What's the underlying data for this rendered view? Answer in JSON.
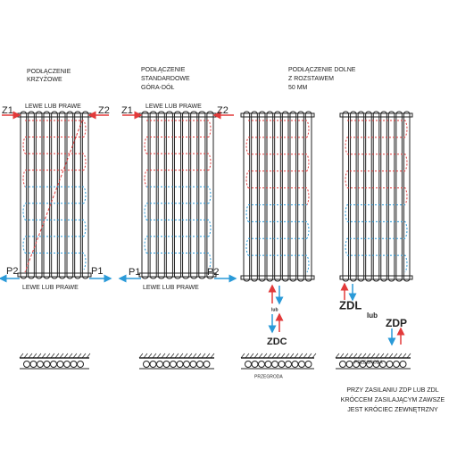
{
  "panels": [
    {
      "title": [
        "PODŁĄCZENIE",
        "KRZYŻOWE"
      ],
      "top_label": "LEWE LUB PRAWE",
      "bottom_label": "LEWE LUB PRAWE",
      "supply_left": "Z1",
      "supply_right": "Z2",
      "return_left": "P2",
      "return_right": "P1"
    },
    {
      "title": [
        "PODŁĄCZENIE",
        "STANDARDOWE",
        "GÓRA-DÓŁ"
      ],
      "top_label": "LEWE LUB PRAWE",
      "bottom_label": "LEWE LUB PRAWE",
      "supply_left": "Z1",
      "supply_right": "Z2",
      "return_left": "P1",
      "return_right": "P2"
    },
    {
      "title": [
        "PODŁĄCZENIE DOLNE",
        "Z ROZSTAWEM",
        "50 MM"
      ],
      "connector_or": "lub",
      "connector": "ZDC",
      "partition": "PRZEGRODA"
    },
    {
      "connector_left": "ZDL",
      "connector_or": "lub",
      "connector_right": "ZDP",
      "partition": "PRZEGRODA"
    }
  ],
  "note": [
    "PRZY ZASILANIU ZDP LUB ZDL",
    "KRÓCCEM ZASILAJĄCYM ZAWSZE",
    "JEST KRÓCIEC ZEWNĘTRZNY"
  ]
}
